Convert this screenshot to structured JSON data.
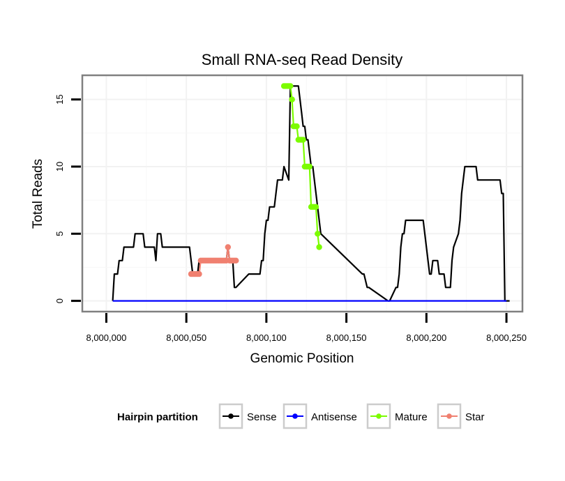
{
  "chart_data": {
    "type": "line",
    "title": "Small RNA-seq Read Density",
    "xlabel": "Genomic Position",
    "ylabel": "Total Reads",
    "xlim": [
      7999985,
      8000260
    ],
    "ylim": [
      -0.8,
      16.8
    ],
    "x_ticks": [
      8000000,
      8000050,
      8000100,
      8000150,
      8000200,
      8000250
    ],
    "x_tick_labels": [
      "8,000,000",
      "8,000,050",
      "8,000,100",
      "8,000,150",
      "8,000,200",
      "8,000,250"
    ],
    "y_ticks": [
      0,
      5,
      10,
      15
    ],
    "y_tick_labels": [
      "0",
      "5",
      "10",
      "15"
    ],
    "grid": true,
    "legend": {
      "title": "Hairpin partition",
      "position": "bottom",
      "entries": [
        "Sense",
        "Antisense",
        "Mature",
        "Star"
      ]
    },
    "series": [
      {
        "name": "Sense",
        "color": "#000000",
        "markers": false,
        "x": [
          8000004,
          8000005,
          8000006,
          8000007,
          8000008,
          8000009,
          8000010,
          8000011,
          8000012,
          8000017,
          8000018,
          8000023,
          8000024,
          8000029,
          8000030,
          8000031,
          8000032,
          8000033,
          8000034,
          8000035,
          8000052,
          8000053,
          8000054,
          8000057,
          8000058,
          8000075,
          8000076,
          8000077,
          8000078,
          8000079,
          8000080,
          8000081,
          8000089,
          8000090,
          8000091,
          8000092,
          8000093,
          8000094,
          8000095,
          8000096,
          8000097,
          8000098,
          8000099,
          8000100,
          8000101,
          8000102,
          8000103,
          8000104,
          8000105,
          8000106,
          8000107,
          8000108,
          8000109,
          8000110,
          8000111,
          8000114,
          8000115,
          8000116,
          8000117,
          8000118,
          8000119,
          8000120,
          8000121,
          8000122,
          8000123,
          8000124,
          8000125,
          8000126,
          8000127,
          8000128,
          8000129,
          8000130,
          8000131,
          8000132,
          8000133,
          8000134,
          8000160,
          8000161,
          8000163,
          8000164,
          8000176,
          8000177,
          8000181,
          8000182,
          8000183,
          8000184,
          8000185,
          8000186,
          8000187,
          8000188,
          8000197,
          8000198,
          8000199,
          8000200,
          8000201,
          8000202,
          8000203,
          8000204,
          8000205,
          8000207,
          8000208,
          8000209,
          8000210,
          8000211,
          8000212,
          8000213,
          8000214,
          8000215,
          8000216,
          8000217,
          8000220,
          8000221,
          8000222,
          8000223,
          8000224,
          8000226,
          8000227,
          8000228,
          8000229,
          8000230,
          8000231,
          8000232,
          8000238,
          8000239,
          8000246,
          8000247,
          8000248,
          8000249,
          8000252
        ],
        "y": [
          0,
          2,
          2,
          2,
          3,
          3,
          3,
          4,
          4,
          4,
          5,
          5,
          4,
          4,
          4,
          3,
          5,
          5,
          5,
          4,
          4,
          3,
          2,
          2,
          3,
          3,
          4,
          3,
          3,
          3,
          1,
          1,
          2,
          2,
          2,
          2,
          2,
          2,
          2,
          2,
          3,
          3,
          5,
          6,
          6,
          7,
          7,
          7,
          7,
          8,
          9,
          9,
          9,
          9,
          10,
          9,
          16,
          16,
          16,
          16,
          16,
          16,
          15,
          14,
          13,
          13,
          12,
          12,
          11,
          10,
          10,
          9,
          8,
          7,
          6,
          5,
          2,
          2,
          1,
          1,
          0,
          0,
          1,
          1,
          2,
          4,
          5,
          5,
          6,
          6,
          6,
          6,
          5,
          4,
          3,
          2,
          2,
          3,
          3,
          3,
          2,
          2,
          2,
          2,
          1,
          1,
          1,
          1,
          3,
          4,
          5,
          6,
          8,
          9,
          10,
          10,
          10,
          10,
          10,
          10,
          10,
          9,
          9,
          9,
          9,
          8,
          8,
          0,
          0
        ]
      },
      {
        "name": "Antisense",
        "color": "#0000ff",
        "markers": false,
        "x": [
          8000004,
          8000250
        ],
        "y": [
          0,
          0
        ]
      },
      {
        "name": "Mature",
        "color": "#7cfc00",
        "markers": true,
        "x": [
          8000111,
          8000112,
          8000113,
          8000114,
          8000115,
          8000116,
          8000116,
          8000117,
          8000118,
          8000119,
          8000120,
          8000121,
          8000122,
          8000123,
          8000124,
          8000125,
          8000126,
          8000127,
          8000128,
          8000129,
          8000130,
          8000131,
          8000132,
          8000133
        ],
        "y": [
          16,
          16,
          16,
          16,
          16,
          15,
          15,
          13,
          13,
          13,
          12,
          12,
          12,
          12,
          10,
          10,
          10,
          10,
          7,
          7,
          7,
          7,
          5,
          4
        ]
      },
      {
        "name": "Star",
        "color": "#f08070",
        "markers": true,
        "x": [
          8000053,
          8000054,
          8000055,
          8000056,
          8000057,
          8000058,
          8000059,
          8000060,
          8000061,
          8000062,
          8000063,
          8000064,
          8000065,
          8000066,
          8000067,
          8000068,
          8000069,
          8000070,
          8000071,
          8000072,
          8000073,
          8000074,
          8000075,
          8000076,
          8000077,
          8000078,
          8000079,
          8000080,
          8000081
        ],
        "y": [
          2,
          2,
          2,
          2,
          2,
          2,
          3,
          3,
          3,
          3,
          3,
          3,
          3,
          3,
          3,
          3,
          3,
          3,
          3,
          3,
          3,
          3,
          3,
          4,
          3,
          3,
          3,
          3,
          3
        ]
      }
    ]
  }
}
